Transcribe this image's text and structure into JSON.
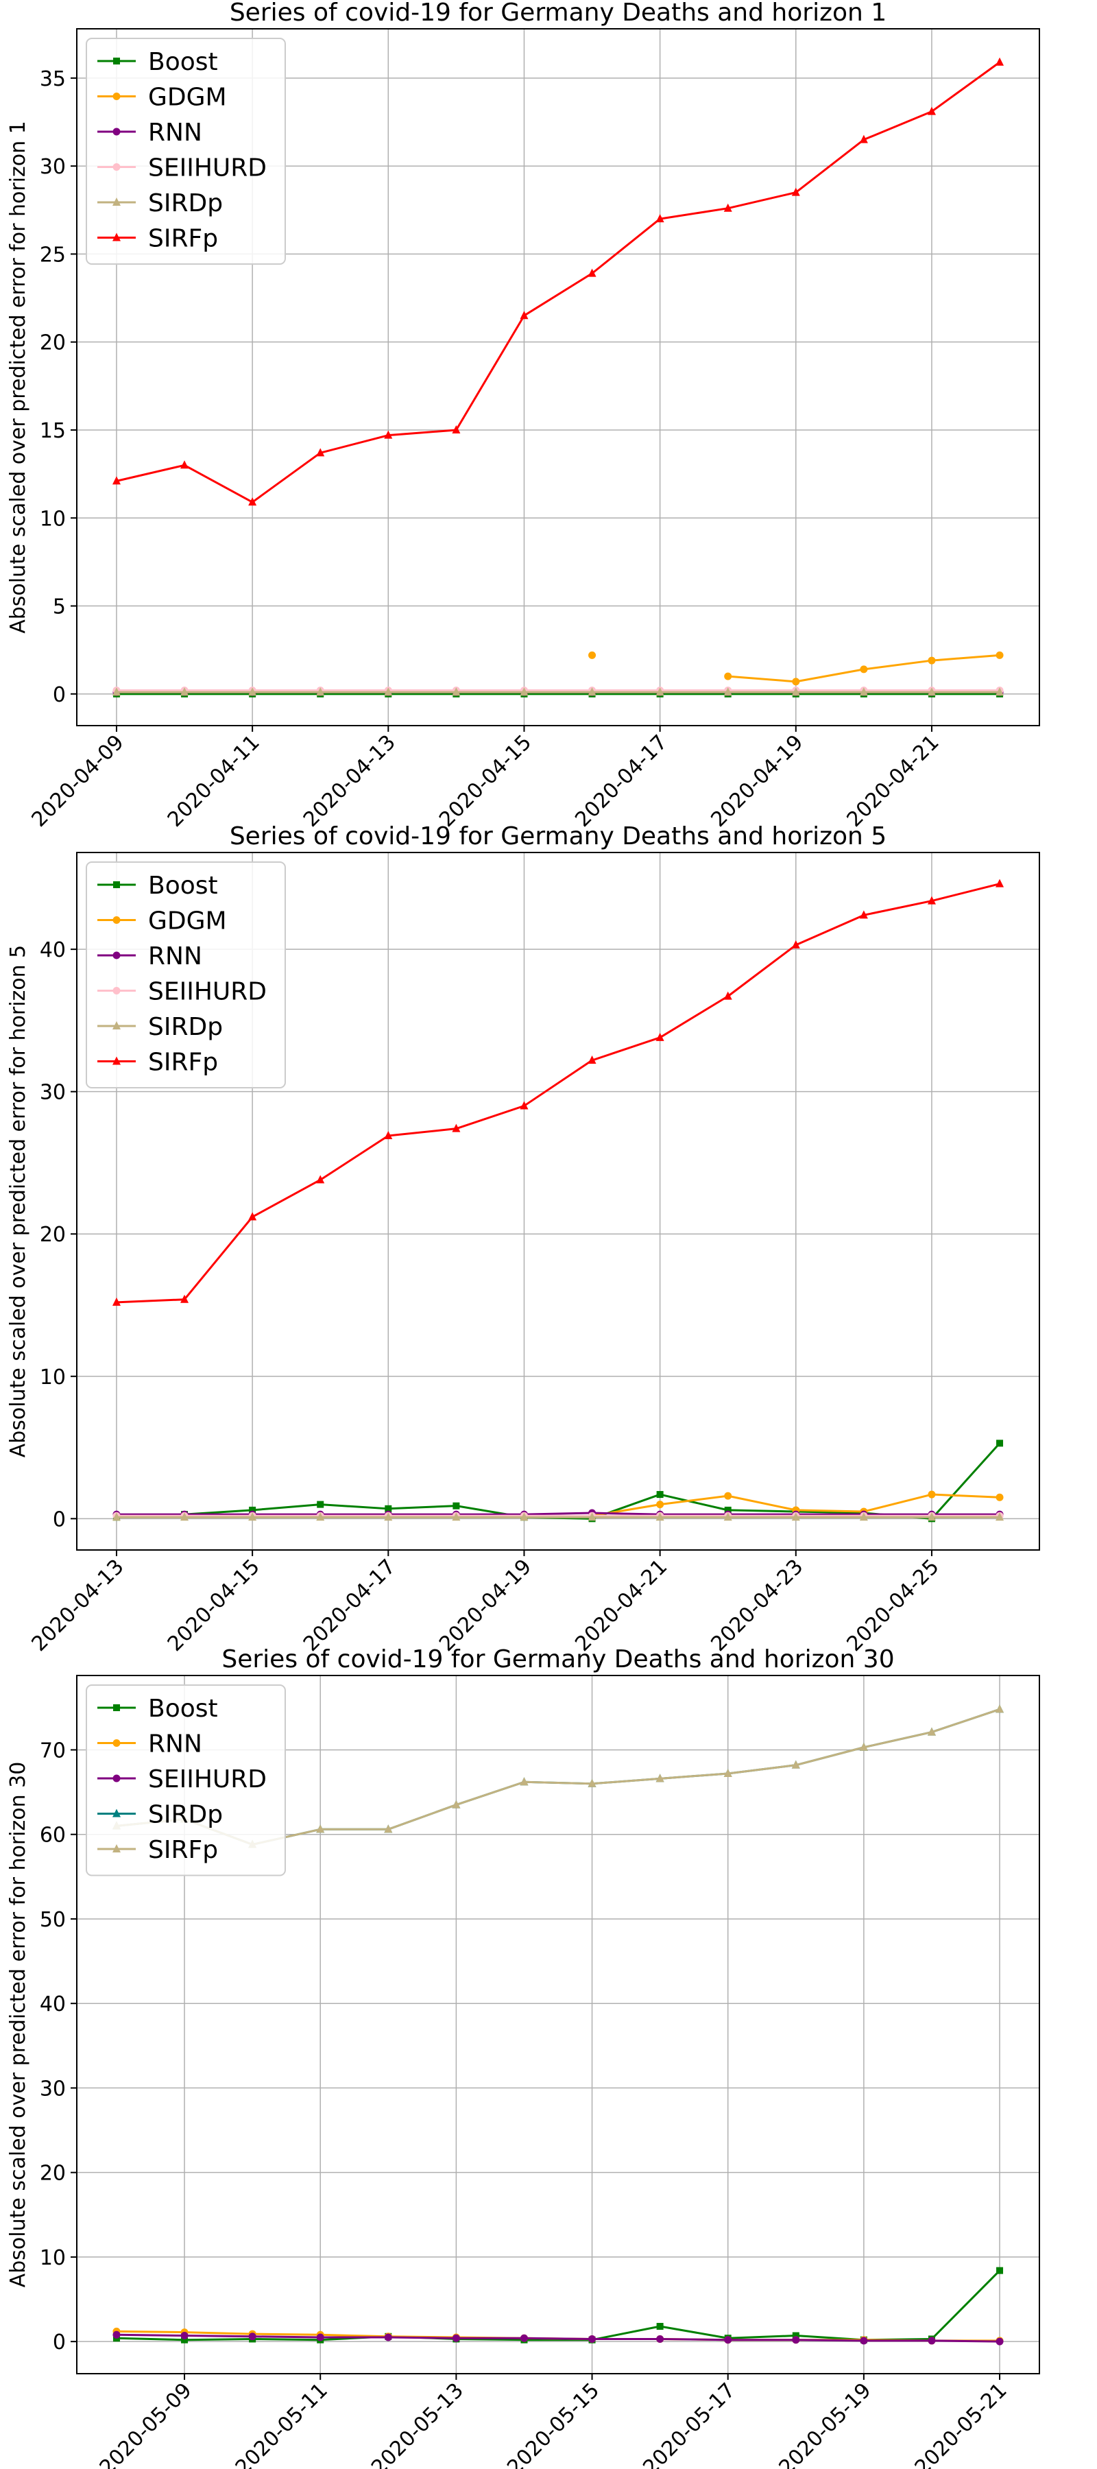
{
  "chart_data": [
    {
      "type": "line",
      "title": "Series of covid-19 for Germany Deaths and horizon 1",
      "ylabel": "Absolute scaled over predicted error for horizon 1",
      "x": [
        "2020-04-09",
        "2020-04-10",
        "2020-04-11",
        "2020-04-12",
        "2020-04-13",
        "2020-04-14",
        "2020-04-15",
        "2020-04-16",
        "2020-04-17",
        "2020-04-18",
        "2020-04-19",
        "2020-04-20",
        "2020-04-21",
        "2020-04-22"
      ],
      "xticks": [
        "2020-04-09",
        "2020-04-11",
        "2020-04-13",
        "2020-04-15",
        "2020-04-17",
        "2020-04-19",
        "2020-04-21"
      ],
      "ylim": [
        -1.8,
        37.8
      ],
      "yticks": [
        0,
        5,
        10,
        15,
        20,
        25,
        30,
        35
      ],
      "grid": true,
      "legend": "upper-left",
      "series": [
        {
          "name": "Boost",
          "color": "#008000",
          "marker": "square",
          "values": [
            0.0,
            0.0,
            0.0,
            0.0,
            0.0,
            0.0,
            0.0,
            0.0,
            0.0,
            0.0,
            0.0,
            0.0,
            0.0,
            0.0
          ]
        },
        {
          "name": "GDGM",
          "color": "#ffa500",
          "marker": "circle",
          "values": [
            null,
            null,
            null,
            null,
            null,
            null,
            null,
            2.2,
            null,
            1.0,
            0.7,
            1.4,
            1.9,
            2.2
          ]
        },
        {
          "name": "RNN",
          "color": "#800080",
          "marker": "circle",
          "values": [
            0.1,
            0.1,
            0.1,
            0.1,
            0.1,
            0.1,
            0.1,
            0.1,
            0.1,
            0.1,
            0.1,
            0.1,
            0.1,
            0.1
          ]
        },
        {
          "name": "SEIIHURD",
          "color": "#ffc0cb",
          "marker": "circle",
          "values": [
            0.2,
            0.2,
            0.2,
            0.2,
            0.2,
            0.2,
            0.2,
            0.2,
            0.2,
            0.2,
            0.2,
            0.2,
            0.2,
            0.2
          ]
        },
        {
          "name": "SIRDp",
          "color": "#c2b280",
          "marker": "triangle",
          "values": [
            0.1,
            0.1,
            0.1,
            0.1,
            0.1,
            0.1,
            0.1,
            0.1,
            0.1,
            0.1,
            0.1,
            0.1,
            0.1,
            0.1
          ]
        },
        {
          "name": "SIRFp",
          "color": "#ff0000",
          "marker": "triangle",
          "values": [
            12.1,
            13.0,
            10.9,
            13.7,
            14.7,
            15.0,
            21.5,
            23.9,
            27.0,
            27.6,
            28.5,
            31.5,
            33.1,
            35.9
          ]
        }
      ]
    },
    {
      "type": "line",
      "title": "Series of covid-19 for Germany Deaths and horizon 5",
      "ylabel": "Absolute scaled over predicted error for horizon 5",
      "x": [
        "2020-04-13",
        "2020-04-14",
        "2020-04-15",
        "2020-04-16",
        "2020-04-17",
        "2020-04-18",
        "2020-04-19",
        "2020-04-20",
        "2020-04-21",
        "2020-04-22",
        "2020-04-23",
        "2020-04-24",
        "2020-04-25",
        "2020-04-26"
      ],
      "xticks": [
        "2020-04-13",
        "2020-04-15",
        "2020-04-17",
        "2020-04-19",
        "2020-04-21",
        "2020-04-23",
        "2020-04-25"
      ],
      "ylim": [
        -2.2,
        46.8
      ],
      "yticks": [
        0,
        10,
        20,
        30,
        40
      ],
      "grid": true,
      "legend": "upper-left",
      "series": [
        {
          "name": "Boost",
          "color": "#008000",
          "marker": "square",
          "values": [
            0.1,
            0.3,
            0.6,
            1.0,
            0.7,
            0.9,
            0.1,
            0.0,
            1.7,
            0.6,
            0.5,
            0.4,
            0.0,
            5.3
          ]
        },
        {
          "name": "GDGM",
          "color": "#ffa500",
          "marker": "circle",
          "values": [
            null,
            null,
            null,
            null,
            null,
            null,
            null,
            0.2,
            1.0,
            1.6,
            0.6,
            0.5,
            1.7,
            1.5
          ]
        },
        {
          "name": "RNN",
          "color": "#800080",
          "marker": "circle",
          "values": [
            0.3,
            0.3,
            0.3,
            0.3,
            0.3,
            0.3,
            0.3,
            0.4,
            0.3,
            0.3,
            0.3,
            0.3,
            0.3,
            0.3
          ]
        },
        {
          "name": "SEIIHURD",
          "color": "#ffc0cb",
          "marker": "circle",
          "values": [
            0.2,
            0.2,
            0.2,
            0.2,
            0.2,
            0.2,
            0.2,
            0.2,
            0.2,
            0.2,
            0.2,
            0.2,
            0.2,
            0.2
          ]
        },
        {
          "name": "SIRDp",
          "color": "#c2b280",
          "marker": "triangle",
          "values": [
            0.1,
            0.1,
            0.1,
            0.1,
            0.1,
            0.1,
            0.1,
            0.1,
            0.1,
            0.1,
            0.1,
            0.1,
            0.1,
            0.1
          ]
        },
        {
          "name": "SIRFp",
          "color": "#ff0000",
          "marker": "triangle",
          "values": [
            15.2,
            15.4,
            21.2,
            23.8,
            26.9,
            27.4,
            29.0,
            32.2,
            33.8,
            36.7,
            40.3,
            42.4,
            43.4,
            44.6
          ]
        }
      ]
    },
    {
      "type": "line",
      "title": "Series of covid-19 for Germany Deaths and horizon 30",
      "ylabel": "Absolute scaled over predicted error for horizon 30",
      "x": [
        "2020-05-08",
        "2020-05-09",
        "2020-05-10",
        "2020-05-11",
        "2020-05-12",
        "2020-05-13",
        "2020-05-14",
        "2020-05-15",
        "2020-05-16",
        "2020-05-17",
        "2020-05-18",
        "2020-05-19",
        "2020-05-20",
        "2020-05-21"
      ],
      "xticks": [
        "2020-05-09",
        "2020-05-11",
        "2020-05-13",
        "2020-05-15",
        "2020-05-17",
        "2020-05-19",
        "2020-05-21"
      ],
      "ylim": [
        -3.8,
        78.8
      ],
      "yticks": [
        0,
        10,
        20,
        30,
        40,
        50,
        60,
        70
      ],
      "grid": true,
      "legend": "upper-left",
      "series": [
        {
          "name": "Boost",
          "color": "#008000",
          "marker": "square",
          "values": [
            0.4,
            0.2,
            0.3,
            0.2,
            0.6,
            0.3,
            0.2,
            0.2,
            1.8,
            0.4,
            0.7,
            0.2,
            0.3,
            8.4
          ]
        },
        {
          "name": "RNN",
          "color": "#ffa500",
          "marker": "circle",
          "values": [
            1.2,
            1.1,
            0.9,
            0.8,
            0.6,
            0.5,
            0.4,
            0.3,
            0.3,
            0.2,
            0.2,
            0.2,
            0.1,
            0.1
          ]
        },
        {
          "name": "SEIIHURD",
          "color": "#800080",
          "marker": "circle",
          "values": [
            0.8,
            0.7,
            0.6,
            0.5,
            0.5,
            0.4,
            0.4,
            0.3,
            0.3,
            0.2,
            0.2,
            0.1,
            0.1,
            0.0
          ]
        },
        {
          "name": "SIRDp",
          "color": "#008080",
          "marker": "triangle",
          "values": [
            61.0,
            61.8,
            58.8,
            60.6,
            60.6,
            63.5,
            66.2,
            66.0,
            66.6,
            67.2,
            68.2,
            70.3,
            72.1,
            74.8
          ]
        },
        {
          "name": "SIRFp",
          "color": "#c2b280",
          "marker": "triangle",
          "values": [
            61.0,
            61.8,
            58.8,
            60.6,
            60.6,
            63.5,
            66.2,
            66.0,
            66.6,
            67.2,
            68.2,
            70.3,
            72.1,
            74.8
          ]
        }
      ]
    }
  ]
}
